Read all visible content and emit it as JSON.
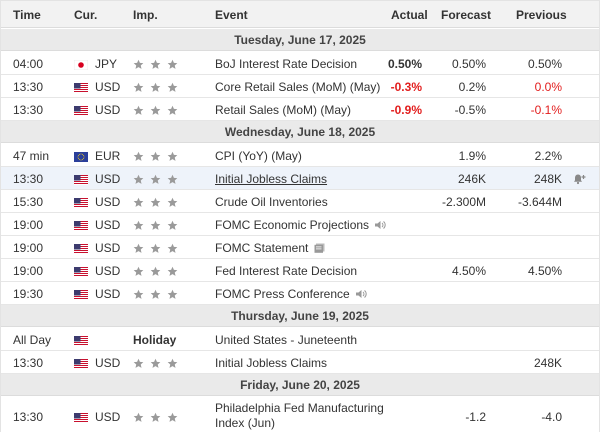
{
  "columns": {
    "time": "Time",
    "currency": "Cur.",
    "importance": "Imp.",
    "event": "Event",
    "actual": "Actual",
    "forecast": "Forecast",
    "previous": "Previous"
  },
  "colors": {
    "negative": "#e21d1d",
    "star": "#9a9a9a",
    "row_highlight": "#eef3fa"
  },
  "days": [
    {
      "date": "Tuesday, June 17, 2025",
      "events": [
        {
          "time": "04:00",
          "flag": "jp-flag-icon",
          "currency": "JPY",
          "stars": 3,
          "event": "BoJ Interest Rate Decision",
          "actual": "0.50%",
          "actual_neg": false,
          "forecast": "0.50%",
          "previous": "0.50%",
          "previous_neg": false
        },
        {
          "time": "13:30",
          "flag": "us-flag-icon",
          "currency": "USD",
          "stars": 3,
          "event": "Core Retail Sales (MoM) (May)",
          "actual": "-0.3%",
          "actual_neg": true,
          "forecast": "0.2%",
          "previous": "0.0%",
          "previous_neg": true
        },
        {
          "time": "13:30",
          "flag": "us-flag-icon",
          "currency": "USD",
          "stars": 3,
          "event": "Retail Sales (MoM) (May)",
          "actual": "-0.9%",
          "actual_neg": true,
          "forecast": "-0.5%",
          "previous": "-0.1%",
          "previous_neg": true
        }
      ]
    },
    {
      "date": "Wednesday, June 18, 2025",
      "events": [
        {
          "time": "47 min",
          "flag": "eu-flag-icon",
          "currency": "EUR",
          "stars": 3,
          "event": "CPI (YoY) (May)",
          "actual": "",
          "forecast": "1.9%",
          "previous": "2.2%"
        },
        {
          "time": "13:30",
          "flag": "us-flag-icon",
          "currency": "USD",
          "stars": 3,
          "event": "Initial Jobless Claims",
          "actual": "",
          "forecast": "246K",
          "previous": "248K",
          "highlight": true,
          "alert": "bell-plus-icon"
        },
        {
          "time": "15:30",
          "flag": "us-flag-icon",
          "currency": "USD",
          "stars": 3,
          "event": "Crude Oil Inventories",
          "actual": "",
          "forecast": "-2.300M",
          "previous": "-3.644M"
        },
        {
          "time": "19:00",
          "flag": "us-flag-icon",
          "currency": "USD",
          "stars": 3,
          "event": "FOMC Economic Projections",
          "extra_icon": "speaker-icon",
          "actual": "",
          "forecast": "",
          "previous": ""
        },
        {
          "time": "19:00",
          "flag": "us-flag-icon",
          "currency": "USD",
          "stars": 3,
          "event": "FOMC Statement",
          "extra_icon": "document-icon",
          "actual": "",
          "forecast": "",
          "previous": ""
        },
        {
          "time": "19:00",
          "flag": "us-flag-icon",
          "currency": "USD",
          "stars": 3,
          "event": "Fed Interest Rate Decision",
          "actual": "",
          "forecast": "4.50%",
          "previous": "4.50%"
        },
        {
          "time": "19:30",
          "flag": "us-flag-icon",
          "currency": "USD",
          "stars": 3,
          "event": "FOMC Press Conference",
          "extra_icon": "speaker-icon",
          "actual": "",
          "forecast": "",
          "previous": ""
        }
      ]
    },
    {
      "date": "Thursday, June 19, 2025",
      "events": [
        {
          "time": "All Day",
          "flag": "us-flag-icon",
          "holiday": "Holiday",
          "event": "United States - Juneteenth"
        },
        {
          "time": "13:30",
          "flag": "us-flag-icon",
          "currency": "USD",
          "stars": 3,
          "event": "Initial Jobless Claims",
          "actual": "",
          "forecast": "",
          "previous": "248K"
        }
      ]
    },
    {
      "date": "Friday, June 20, 2025",
      "events": [
        {
          "time": "13:30",
          "flag": "us-flag-icon",
          "currency": "USD",
          "stars": 3,
          "event": "Philadelphia Fed Manufacturing Index (Jun)",
          "actual": "",
          "forecast": "-1.2",
          "previous": "-4.0",
          "tall": true
        }
      ]
    }
  ]
}
